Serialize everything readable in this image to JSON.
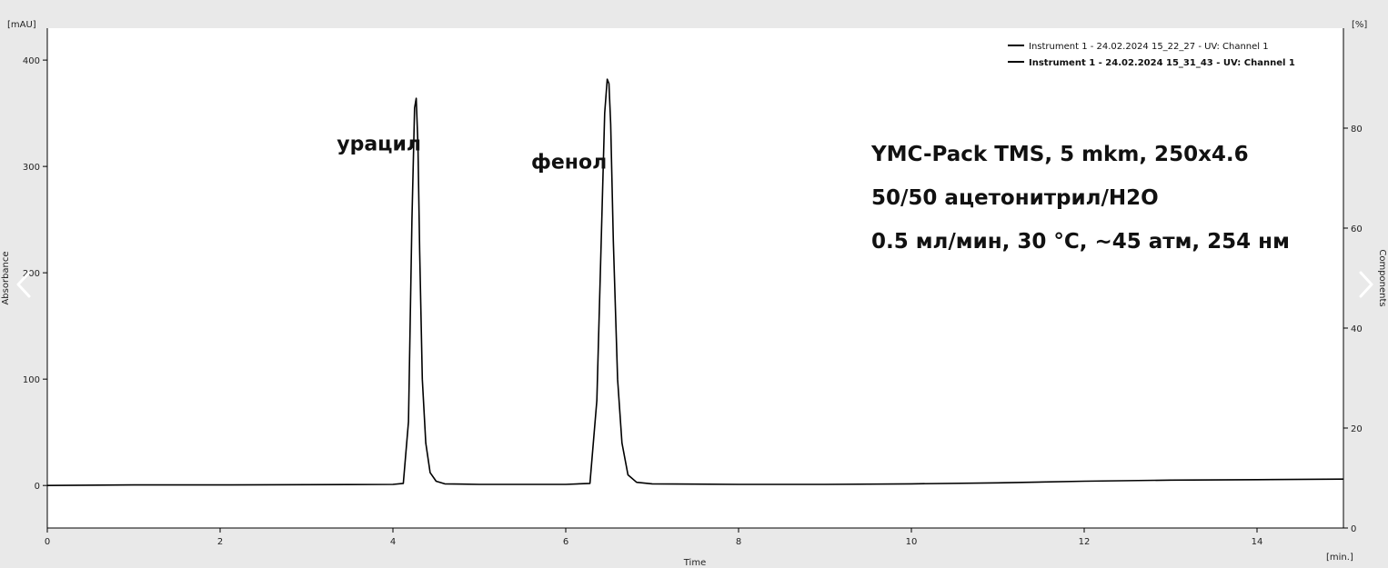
{
  "chart_data": {
    "type": "line",
    "xlabel": "Time",
    "x_unit": "[min.]",
    "ylabel": "Absorbance",
    "y_unit": "[mAU]",
    "y2label": "Components",
    "y2_unit": "[%]",
    "xlim": [
      0,
      15
    ],
    "ylim": [
      -40,
      430
    ],
    "y2lim": [
      0,
      100
    ],
    "x_ticks": [
      0,
      2,
      4,
      6,
      8,
      10,
      12,
      14
    ],
    "y_ticks": [
      0,
      100,
      200,
      300,
      400
    ],
    "y2_ticks": [
      0,
      20,
      40,
      60,
      80
    ],
    "grid": false,
    "legend_position": "top-right",
    "legend": [
      {
        "label": "Instrument 1 - 24.02.2024 15_22_27 - UV: Channel 1",
        "bold": false
      },
      {
        "label": "Instrument 1 - 24.02.2024 15_31_43 - UV: Channel 1",
        "bold": true
      }
    ],
    "series": [
      {
        "name": "Instrument 1 - 24.02.2024 15_31_43 - UV: Channel 1",
        "color": "#000000",
        "x": [
          0,
          1,
          2,
          3,
          4,
          4.12,
          4.18,
          4.22,
          4.25,
          4.27,
          4.29,
          4.31,
          4.34,
          4.38,
          4.43,
          4.5,
          4.6,
          5,
          6,
          6.28,
          6.36,
          6.41,
          6.45,
          6.48,
          6.5,
          6.52,
          6.55,
          6.6,
          6.65,
          6.72,
          6.82,
          7,
          8,
          9,
          10,
          11,
          12,
          13,
          14,
          15
        ],
        "y": [
          0,
          0.5,
          0.5,
          0.8,
          1,
          2,
          60,
          250,
          355,
          364,
          320,
          220,
          100,
          40,
          12,
          4,
          1.5,
          1,
          1,
          2,
          80,
          230,
          350,
          382,
          378,
          340,
          230,
          100,
          40,
          10,
          3,
          1.5,
          1,
          1,
          1.5,
          2.5,
          4,
          5,
          5.5,
          6
        ]
      }
    ],
    "annotations": [
      {
        "text": "урацил",
        "x": 3.35,
        "y": 315
      },
      {
        "text": "фенол",
        "x": 5.6,
        "y": 298
      }
    ],
    "conditions": [
      "YMC-Pack TMS, 5 mkm, 250x4.6",
      "50/50 ацетонитрил/H2O",
      "0.5 мл/мин, 30 °C, ~45 атм, 254 нм"
    ]
  }
}
